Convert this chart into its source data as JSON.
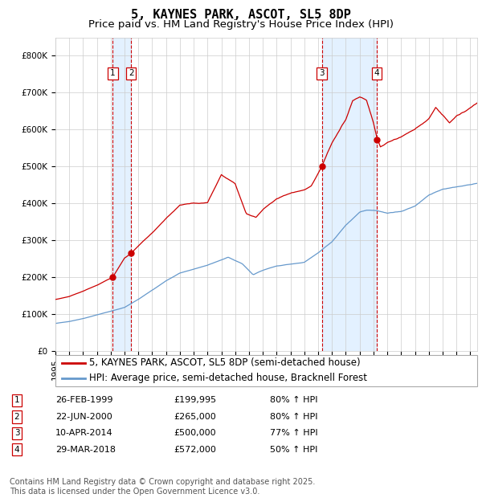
{
  "title": "5, KAYNES PARK, ASCOT, SL5 8DP",
  "subtitle": "Price paid vs. HM Land Registry's House Price Index (HPI)",
  "ylim": [
    0,
    850000
  ],
  "yticks": [
    0,
    100000,
    200000,
    300000,
    400000,
    500000,
    600000,
    700000,
    800000
  ],
  "ytick_labels": [
    "£0",
    "£100K",
    "£200K",
    "£300K",
    "£400K",
    "£500K",
    "£600K",
    "£700K",
    "£800K"
  ],
  "transactions": [
    {
      "id": 1,
      "date": "26-FEB-1999",
      "price": 199995,
      "pct": "80%",
      "year": 1999.15
    },
    {
      "id": 2,
      "date": "22-JUN-2000",
      "price": 265000,
      "pct": "80%",
      "year": 2000.47
    },
    {
      "id": 3,
      "date": "10-APR-2014",
      "price": 500000,
      "pct": "77%",
      "year": 2014.27
    },
    {
      "id": 4,
      "date": "29-MAR-2018",
      "price": 572000,
      "pct": "50%",
      "year": 2018.24
    }
  ],
  "legend_property_label": "5, KAYNES PARK, ASCOT, SL5 8DP (semi-detached house)",
  "legend_hpi_label": "HPI: Average price, semi-detached house, Bracknell Forest",
  "property_color": "#cc0000",
  "hpi_color": "#6699cc",
  "footer": "Contains HM Land Registry data © Crown copyright and database right 2025.\nThis data is licensed under the Open Government Licence v3.0.",
  "shade_color": "#ddeeff",
  "dashed_color": "#cc0000",
  "background_color": "#ffffff",
  "grid_color": "#cccccc",
  "title_fontsize": 11,
  "subtitle_fontsize": 9.5,
  "tick_fontsize": 7.5,
  "legend_fontsize": 8.5,
  "footer_fontsize": 7.0
}
